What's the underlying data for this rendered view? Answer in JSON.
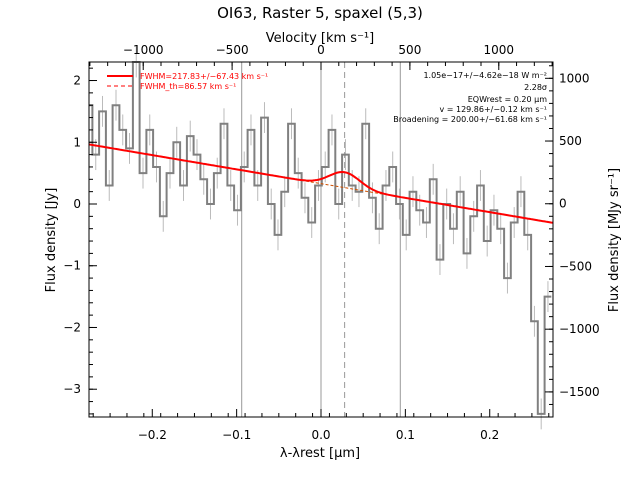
{
  "chart_data": {
    "type": "line",
    "title": "OI63, Raster 5, spaxel (5,3)",
    "xlabel": "λ-λrest [μm]",
    "ylabel_left": "Flux density [Jy]",
    "ylabel_right": "Flux density [MJy sr⁻¹]",
    "xlabel_top": "Velocity [km s⁻¹]",
    "xlim": [
      -0.275,
      0.275
    ],
    "ylim": [
      -3.45,
      2.3
    ],
    "x_ticks": [
      -0.2,
      -0.1,
      0.0,
      0.1,
      0.2
    ],
    "x_tick_labels": [
      "−0.2",
      "−0.1",
      "0.0",
      "0.1",
      "0.2"
    ],
    "y_ticks": [
      -3,
      -2,
      -1,
      0,
      1,
      2
    ],
    "y_tick_labels": [
      "−3",
      "−2",
      "−1",
      "0",
      "1",
      "2"
    ],
    "top_ticks": [
      -1000,
      -500,
      0,
      500,
      1000
    ],
    "top_tick_labels": [
      "−1000",
      "−500",
      "0",
      "500",
      "1000"
    ],
    "top_xlim": [
      -1305,
      1305
    ],
    "right_ticks": [
      -1500,
      -1000,
      -500,
      0,
      500,
      1000
    ],
    "right_tick_labels": [
      "−1500",
      "−1000",
      "−500",
      "0",
      "500",
      "1000"
    ],
    "right_ylim": [
      -1700,
      1130
    ],
    "vlines": [
      -0.094,
      0.0,
      0.094
    ],
    "center_line": 0.028,
    "legend": {
      "fit_label": "FWHM=217.83+/−67.43 km s⁻¹",
      "th_label": "FWHM_th=86.57 km s⁻¹"
    },
    "annotations": [
      "1.05e−17+/−4.62e−18 W m⁻²",
      "2.28σ",
      "EQWrest = 0.20 μm",
      "v = 129.86+/−0.12 km s⁻¹",
      "Broadening = 200.00+/−61.68 km s⁻¹"
    ],
    "continuum": {
      "a": 0.33,
      "b": -2.31
    },
    "gaussian": {
      "center": 0.028,
      "sigma": 0.018,
      "amplitude": 0.25
    },
    "series": [
      {
        "kind": "spectrum",
        "x": [
          -0.275,
          -0.267,
          -0.259,
          -0.251,
          -0.243,
          -0.235,
          -0.227,
          -0.219,
          -0.211,
          -0.203,
          -0.195,
          -0.187,
          -0.179,
          -0.171,
          -0.163,
          -0.155,
          -0.147,
          -0.139,
          -0.131,
          -0.123,
          -0.115,
          -0.107,
          -0.099,
          -0.091,
          -0.083,
          -0.075,
          -0.067,
          -0.059,
          -0.051,
          -0.043,
          -0.035,
          -0.027,
          -0.019,
          -0.011,
          -0.003,
          0.005,
          0.013,
          0.021,
          0.029,
          0.037,
          0.045,
          0.053,
          0.061,
          0.069,
          0.077,
          0.085,
          0.093,
          0.101,
          0.109,
          0.117,
          0.125,
          0.133,
          0.141,
          0.149,
          0.157,
          0.165,
          0.173,
          0.181,
          0.189,
          0.197,
          0.205,
          0.213,
          0.221,
          0.229,
          0.237,
          0.245,
          0.253,
          0.261,
          0.269
        ],
        "y": [
          1.6,
          0.8,
          1.5,
          0.3,
          1.6,
          1.2,
          0.9,
          2.3,
          0.5,
          1.2,
          0.6,
          -0.2,
          0.5,
          1.0,
          0.3,
          1.1,
          0.8,
          0.4,
          0.0,
          0.5,
          1.3,
          0.3,
          -0.1,
          0.6,
          1.2,
          0.3,
          1.4,
          0.0,
          -0.5,
          0.2,
          1.3,
          0.5,
          0.1,
          -0.3,
          0.3,
          0.6,
          1.2,
          0.0,
          0.8,
          0.3,
          0.2,
          1.3,
          0.1,
          -0.4,
          0.3,
          0.6,
          0.0,
          -0.5,
          0.2,
          -0.1,
          -0.3,
          0.4,
          -0.9,
          0.0,
          -0.4,
          0.2,
          -0.8,
          -0.2,
          0.3,
          -0.6,
          -0.1,
          -0.4,
          -1.2,
          -0.3,
          0.2,
          -0.5,
          -1.9,
          -3.4,
          -1.5
        ],
        "err": 0.25,
        "color": "#808080"
      },
      {
        "kind": "fit",
        "color": "#ff0000"
      },
      {
        "kind": "continuum",
        "color": "#d05000"
      }
    ]
  }
}
